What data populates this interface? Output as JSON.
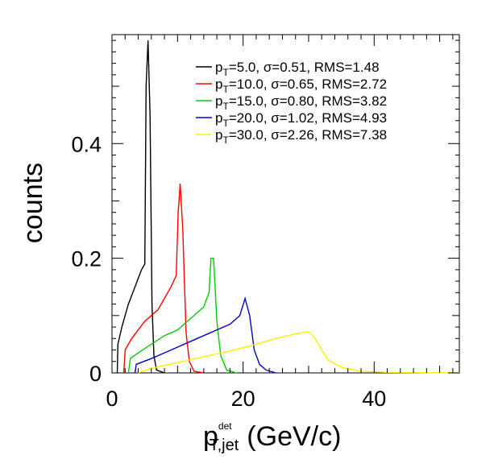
{
  "chart_data": {
    "type": "line",
    "title": "",
    "ylabel": "counts",
    "xlabel": {
      "base": "p",
      "sub": "T,jet",
      "sup": "det",
      "unit": "(GeV/c)"
    },
    "xlim": [
      0,
      53
    ],
    "ylim": [
      0,
      0.59
    ],
    "xticks": [
      "0",
      "20",
      "40"
    ],
    "xtick_values": [
      0,
      20,
      40
    ],
    "yticks": [
      "0",
      "0.2",
      "0.4"
    ],
    "ytick_values": [
      0,
      0.2,
      0.4
    ],
    "grid": false,
    "legend_position": "top-right",
    "series": [
      {
        "color": "#000000",
        "legend": {
          "lead": "p",
          "sub": "T",
          "rest": "=5.0, σ=0.51, RMS=1.48"
        },
        "points": [
          [
            0.8,
            0
          ],
          [
            0.9,
            0.05
          ],
          [
            1.5,
            0.08
          ],
          [
            2.5,
            0.12
          ],
          [
            3.5,
            0.15
          ],
          [
            4.5,
            0.18
          ],
          [
            5.0,
            0.19
          ],
          [
            5.2,
            0.5
          ],
          [
            5.5,
            0.58
          ],
          [
            5.8,
            0.45
          ],
          [
            6.1,
            0.12
          ],
          [
            6.4,
            0.03
          ],
          [
            6.8,
            0.005
          ],
          [
            8,
            0
          ]
        ]
      },
      {
        "color": "#ff0000",
        "legend": {
          "lead": "p",
          "sub": "T",
          "rest": "=10.0, σ=0.65, RMS=2.72"
        },
        "points": [
          [
            1.8,
            0
          ],
          [
            2.0,
            0.04
          ],
          [
            3.0,
            0.06
          ],
          [
            4.0,
            0.075
          ],
          [
            5.0,
            0.09
          ],
          [
            6.0,
            0.1
          ],
          [
            7.0,
            0.11
          ],
          [
            8.0,
            0.13
          ],
          [
            9.0,
            0.15
          ],
          [
            9.8,
            0.17
          ],
          [
            10.1,
            0.28
          ],
          [
            10.4,
            0.33
          ],
          [
            10.8,
            0.25
          ],
          [
            11.3,
            0.07
          ],
          [
            11.8,
            0.02
          ],
          [
            12.5,
            0.003
          ],
          [
            14,
            0
          ]
        ]
      },
      {
        "color": "#00cc00",
        "legend": {
          "lead": "p",
          "sub": "T",
          "rest": "=15.0, σ=0.80, RMS=3.82"
        },
        "points": [
          [
            2.5,
            0
          ],
          [
            2.8,
            0.025
          ],
          [
            4,
            0.035
          ],
          [
            6,
            0.05
          ],
          [
            8,
            0.065
          ],
          [
            10,
            0.075
          ],
          [
            12,
            0.095
          ],
          [
            14,
            0.115
          ],
          [
            14.8,
            0.14
          ],
          [
            15.1,
            0.2
          ],
          [
            15.5,
            0.2
          ],
          [
            16,
            0.09
          ],
          [
            16.6,
            0.03
          ],
          [
            17.5,
            0.005
          ],
          [
            19,
            0
          ]
        ]
      },
      {
        "color": "#0000cc",
        "legend": {
          "lead": "p",
          "sub": "T",
          "rest": "=20.0, σ=1.02, RMS=4.93"
        },
        "points": [
          [
            3.5,
            0
          ],
          [
            3.7,
            0.015
          ],
          [
            6,
            0.025
          ],
          [
            8,
            0.035
          ],
          [
            10,
            0.045
          ],
          [
            12,
            0.055
          ],
          [
            14,
            0.065
          ],
          [
            16,
            0.075
          ],
          [
            18,
            0.085
          ],
          [
            19.5,
            0.1
          ],
          [
            20.3,
            0.13
          ],
          [
            21.0,
            0.1
          ],
          [
            21.7,
            0.04
          ],
          [
            22.5,
            0.015
          ],
          [
            23.5,
            0.005
          ],
          [
            25,
            0
          ]
        ]
      },
      {
        "color": "#ffee00",
        "legend": {
          "lead": "p",
          "sub": "T",
          "rest": "=30.0, σ=2.26, RMS=7.38"
        },
        "points": [
          [
            4,
            0
          ],
          [
            6,
            0.008
          ],
          [
            10,
            0.018
          ],
          [
            14,
            0.028
          ],
          [
            18,
            0.038
          ],
          [
            22,
            0.05
          ],
          [
            25,
            0.06
          ],
          [
            28,
            0.068
          ],
          [
            30,
            0.072
          ],
          [
            31,
            0.06
          ],
          [
            32,
            0.04
          ],
          [
            33,
            0.022
          ],
          [
            35,
            0.01
          ],
          [
            38,
            0.003
          ],
          [
            42,
            0.001
          ],
          [
            53,
            0
          ]
        ]
      }
    ]
  }
}
